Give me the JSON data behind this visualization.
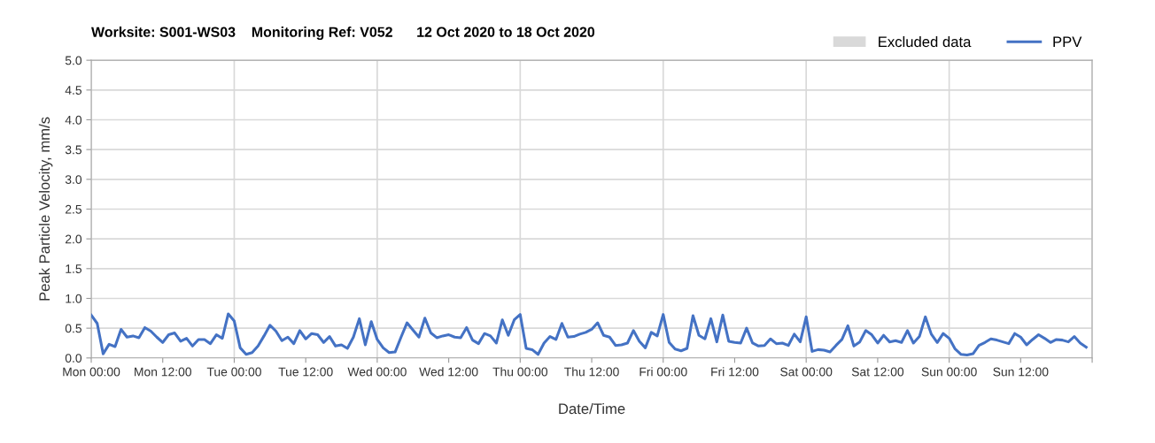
{
  "chart_data": {
    "type": "line",
    "title": "Worksite: S001-WS03    Monitoring Ref: V052      12 Oct 2020 to 18 Oct 2020",
    "xlabel": "Date/Time",
    "ylabel": "Peak Particle Velocity, mm/s",
    "x": [
      "2020-10-12T00:00",
      "2020-10-12T01:00",
      "2020-10-12T02:00",
      "2020-10-12T03:00",
      "2020-10-12T04:00",
      "2020-10-12T05:00",
      "2020-10-12T06:00",
      "2020-10-12T07:00",
      "2020-10-12T08:00",
      "2020-10-12T09:00",
      "2020-10-12T10:00",
      "2020-10-12T11:00",
      "2020-10-12T12:00",
      "2020-10-12T13:00",
      "2020-10-12T14:00",
      "2020-10-12T15:00",
      "2020-10-12T16:00",
      "2020-10-12T17:00",
      "2020-10-12T18:00",
      "2020-10-12T19:00",
      "2020-10-12T20:00",
      "2020-10-12T21:00",
      "2020-10-12T22:00",
      "2020-10-12T23:00",
      "2020-10-13T00:00",
      "2020-10-13T01:00",
      "2020-10-13T02:00",
      "2020-10-13T03:00",
      "2020-10-13T04:00",
      "2020-10-13T05:00",
      "2020-10-13T06:00",
      "2020-10-13T07:00",
      "2020-10-13T08:00",
      "2020-10-13T09:00",
      "2020-10-13T10:00",
      "2020-10-13T11:00",
      "2020-10-13T12:00",
      "2020-10-13T13:00",
      "2020-10-13T14:00",
      "2020-10-13T15:00",
      "2020-10-13T16:00",
      "2020-10-13T17:00",
      "2020-10-13T18:00",
      "2020-10-13T19:00",
      "2020-10-13T20:00",
      "2020-10-13T21:00",
      "2020-10-13T22:00",
      "2020-10-13T23:00",
      "2020-10-14T00:00",
      "2020-10-14T01:00",
      "2020-10-14T02:00",
      "2020-10-14T03:00",
      "2020-10-14T04:00",
      "2020-10-14T05:00",
      "2020-10-14T06:00",
      "2020-10-14T07:00",
      "2020-10-14T08:00",
      "2020-10-14T09:00",
      "2020-10-14T10:00",
      "2020-10-14T11:00",
      "2020-10-14T12:00",
      "2020-10-14T13:00",
      "2020-10-14T14:00",
      "2020-10-14T15:00",
      "2020-10-14T16:00",
      "2020-10-14T17:00",
      "2020-10-14T18:00",
      "2020-10-14T19:00",
      "2020-10-14T20:00",
      "2020-10-14T21:00",
      "2020-10-14T22:00",
      "2020-10-14T23:00",
      "2020-10-15T00:00",
      "2020-10-15T01:00",
      "2020-10-15T02:00",
      "2020-10-15T03:00",
      "2020-10-15T04:00",
      "2020-10-15T05:00",
      "2020-10-15T06:00",
      "2020-10-15T07:00",
      "2020-10-15T08:00",
      "2020-10-15T09:00",
      "2020-10-15T10:00",
      "2020-10-15T11:00",
      "2020-10-15T12:00",
      "2020-10-15T13:00",
      "2020-10-15T14:00",
      "2020-10-15T15:00",
      "2020-10-15T16:00",
      "2020-10-15T17:00",
      "2020-10-15T18:00",
      "2020-10-15T19:00",
      "2020-10-15T20:00",
      "2020-10-15T21:00",
      "2020-10-15T22:00",
      "2020-10-15T23:00",
      "2020-10-16T00:00",
      "2020-10-16T01:00",
      "2020-10-16T02:00",
      "2020-10-16T03:00",
      "2020-10-16T04:00",
      "2020-10-16T05:00",
      "2020-10-16T06:00",
      "2020-10-16T07:00",
      "2020-10-16T08:00",
      "2020-10-16T09:00",
      "2020-10-16T10:00",
      "2020-10-16T11:00",
      "2020-10-16T12:00",
      "2020-10-16T13:00",
      "2020-10-16T14:00",
      "2020-10-16T15:00",
      "2020-10-16T16:00",
      "2020-10-16T17:00",
      "2020-10-16T18:00",
      "2020-10-16T19:00",
      "2020-10-16T20:00",
      "2020-10-16T21:00",
      "2020-10-16T22:00",
      "2020-10-16T23:00",
      "2020-10-17T00:00",
      "2020-10-17T01:00",
      "2020-10-17T02:00",
      "2020-10-17T03:00",
      "2020-10-17T04:00",
      "2020-10-17T05:00",
      "2020-10-17T06:00",
      "2020-10-17T07:00",
      "2020-10-17T08:00",
      "2020-10-17T09:00",
      "2020-10-17T10:00",
      "2020-10-17T11:00",
      "2020-10-17T12:00",
      "2020-10-17T13:00",
      "2020-10-17T14:00",
      "2020-10-17T15:00",
      "2020-10-17T16:00",
      "2020-10-17T17:00",
      "2020-10-17T18:00",
      "2020-10-17T19:00",
      "2020-10-17T20:00",
      "2020-10-17T21:00",
      "2020-10-17T22:00",
      "2020-10-17T23:00",
      "2020-10-18T00:00",
      "2020-10-18T01:00",
      "2020-10-18T02:00",
      "2020-10-18T03:00",
      "2020-10-18T04:00",
      "2020-10-18T05:00",
      "2020-10-18T06:00",
      "2020-10-18T07:00",
      "2020-10-18T08:00",
      "2020-10-18T09:00",
      "2020-10-18T10:00",
      "2020-10-18T11:00",
      "2020-10-18T12:00",
      "2020-10-18T13:00",
      "2020-10-18T14:00",
      "2020-10-18T15:00",
      "2020-10-18T16:00",
      "2020-10-18T17:00",
      "2020-10-18T18:00",
      "2020-10-18T19:00",
      "2020-10-18T20:00",
      "2020-10-18T21:00",
      "2020-10-18T22:00",
      "2020-10-18T23:00"
    ],
    "series": [
      {
        "name": "Excluded data",
        "type": "area",
        "color": "#d9d9d9",
        "values": [
          null,
          null,
          null,
          null,
          null,
          null,
          null,
          null,
          null,
          null,
          null,
          null,
          null,
          null,
          null,
          null,
          null,
          null,
          null,
          null,
          null,
          null,
          null,
          null,
          null,
          null,
          null,
          null,
          null,
          null,
          null,
          null,
          null,
          null,
          null,
          null,
          null,
          null,
          null,
          null,
          null,
          null,
          null,
          null,
          null,
          null,
          null,
          null,
          null,
          null,
          null,
          null,
          null,
          null,
          null,
          null,
          null,
          null,
          null,
          null,
          null,
          null,
          null,
          null,
          null,
          null,
          null,
          null,
          null,
          null,
          null,
          null,
          null,
          null,
          null,
          null,
          null,
          null,
          null,
          null,
          null,
          null,
          null,
          null,
          null,
          null,
          null,
          null,
          null,
          null,
          null,
          null,
          null,
          null,
          null,
          null,
          null,
          null,
          null,
          null,
          null,
          null,
          null,
          null,
          null,
          null,
          null,
          null,
          null,
          null,
          null,
          null,
          null,
          null,
          null,
          null,
          null,
          null,
          null,
          null,
          null,
          null,
          null,
          null,
          null,
          null,
          null,
          null,
          null,
          null,
          null,
          null,
          null,
          null,
          null,
          null,
          null,
          null,
          null,
          null,
          null,
          null,
          null,
          null,
          null,
          null,
          null,
          null,
          null,
          null,
          null,
          null,
          null,
          null,
          null,
          null,
          null,
          null,
          null,
          null,
          null,
          null,
          null,
          null,
          null,
          null,
          null,
          null
        ]
      },
      {
        "name": "PPV",
        "color": "#4472c4",
        "values": [
          0.72,
          0.58,
          0.07,
          0.23,
          0.19,
          0.48,
          0.35,
          0.37,
          0.34,
          0.51,
          0.45,
          0.35,
          0.26,
          0.39,
          0.42,
          0.28,
          0.33,
          0.2,
          0.31,
          0.31,
          0.24,
          0.39,
          0.33,
          0.74,
          0.62,
          0.17,
          0.06,
          0.09,
          0.2,
          0.37,
          0.55,
          0.45,
          0.29,
          0.35,
          0.24,
          0.46,
          0.32,
          0.41,
          0.39,
          0.26,
          0.36,
          0.2,
          0.22,
          0.16,
          0.35,
          0.66,
          0.22,
          0.61,
          0.31,
          0.17,
          0.09,
          0.1,
          0.35,
          0.59,
          0.47,
          0.35,
          0.67,
          0.42,
          0.34,
          0.37,
          0.39,
          0.35,
          0.34,
          0.51,
          0.3,
          0.24,
          0.41,
          0.37,
          0.25,
          0.64,
          0.38,
          0.64,
          0.73,
          0.16,
          0.14,
          0.06,
          0.25,
          0.36,
          0.31,
          0.58,
          0.35,
          0.36,
          0.4,
          0.43,
          0.48,
          0.59,
          0.38,
          0.35,
          0.21,
          0.22,
          0.25,
          0.46,
          0.28,
          0.17,
          0.43,
          0.37,
          0.73,
          0.26,
          0.15,
          0.12,
          0.16,
          0.71,
          0.38,
          0.32,
          0.66,
          0.27,
          0.72,
          0.28,
          0.26,
          0.25,
          0.5,
          0.25,
          0.2,
          0.21,
          0.32,
          0.24,
          0.25,
          0.21,
          0.4,
          0.27,
          0.69,
          0.11,
          0.14,
          0.13,
          0.1,
          0.21,
          0.31,
          0.54,
          0.2,
          0.27,
          0.46,
          0.39,
          0.25,
          0.38,
          0.27,
          0.29,
          0.26,
          0.46,
          0.25,
          0.36,
          0.69,
          0.4,
          0.26,
          0.41,
          0.33,
          0.15,
          0.06,
          0.05,
          0.07,
          0.21,
          0.26,
          0.32,
          0.3,
          0.27,
          0.24,
          0.41,
          0.35,
          0.22,
          0.31,
          0.39,
          0.33,
          0.26,
          0.31,
          0.3,
          0.27,
          0.36,
          0.25,
          0.18
        ]
      }
    ],
    "xlim": [
      "2020-10-12T00:00",
      "2020-10-19T00:00"
    ],
    "xticks": [
      {
        "value": "2020-10-12T00:00",
        "label": "Mon 00:00"
      },
      {
        "value": "2020-10-12T12:00",
        "label": "Mon 12:00"
      },
      {
        "value": "2020-10-13T00:00",
        "label": "Tue 00:00"
      },
      {
        "value": "2020-10-13T12:00",
        "label": "Tue 12:00"
      },
      {
        "value": "2020-10-14T00:00",
        "label": "Wed 00:00"
      },
      {
        "value": "2020-10-14T12:00",
        "label": "Wed 12:00"
      },
      {
        "value": "2020-10-15T00:00",
        "label": "Thu 00:00"
      },
      {
        "value": "2020-10-15T12:00",
        "label": "Thu 12:00"
      },
      {
        "value": "2020-10-16T00:00",
        "label": "Fri 00:00"
      },
      {
        "value": "2020-10-16T12:00",
        "label": "Fri 12:00"
      },
      {
        "value": "2020-10-17T00:00",
        "label": "Sat 00:00"
      },
      {
        "value": "2020-10-17T12:00",
        "label": "Sat 12:00"
      },
      {
        "value": "2020-10-18T00:00",
        "label": "Sun 00:00"
      },
      {
        "value": "2020-10-18T12:00",
        "label": "Sun 12:00"
      },
      {
        "value": "2020-10-19T00:00",
        "label": null
      }
    ],
    "ylim": [
      0,
      5
    ],
    "yticks": [
      {
        "value": 0,
        "label": "0.0"
      },
      {
        "value": 0.5,
        "label": "0.5"
      },
      {
        "value": 1,
        "label": "1.0"
      },
      {
        "value": 1.5,
        "label": "1.5"
      },
      {
        "value": 2,
        "label": "2.0"
      },
      {
        "value": 2.5,
        "label": "2.5"
      },
      {
        "value": 3,
        "label": "3.0"
      },
      {
        "value": 3.5,
        "label": "3.5"
      },
      {
        "value": 4,
        "label": "4.0"
      },
      {
        "value": 4.5,
        "label": "4.5"
      },
      {
        "value": 5,
        "label": "5.0"
      }
    ],
    "grid": true,
    "legend": "top right",
    "marker": "none",
    "line_style": "solid"
  }
}
